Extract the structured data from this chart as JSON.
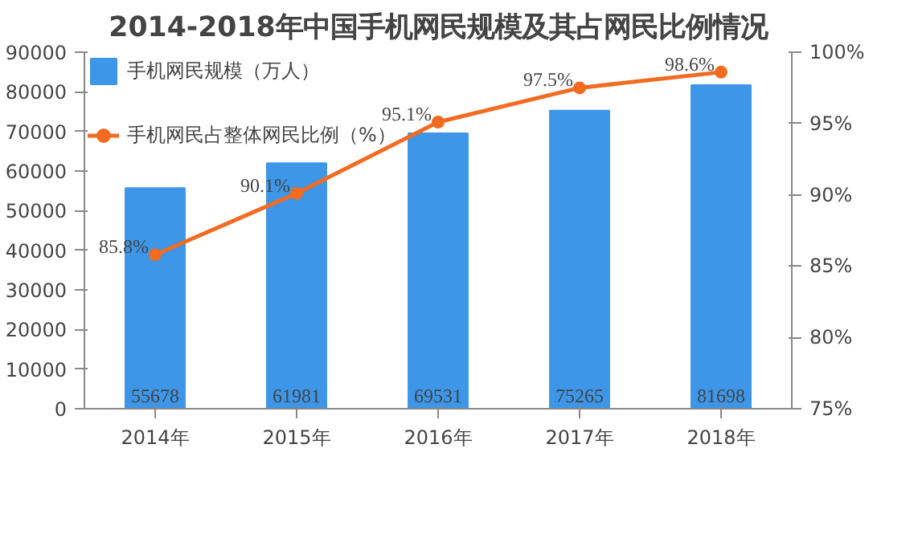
{
  "chart_data": {
    "type": "bar",
    "title": "2014-2018年中国手机网民规模及其占网民比例情况",
    "categories": [
      "2014年",
      "2015年",
      "2016年",
      "2017年",
      "2018年"
    ],
    "series": [
      {
        "name": "手机网民规模（万人）",
        "type": "bar",
        "color": "#3d96e8",
        "values": [
          55678,
          61981,
          69531,
          75265,
          81698
        ]
      },
      {
        "name": "手机网民占整体网民比例（%）",
        "type": "line",
        "axis": "y2",
        "color": "#f26b21",
        "values": [
          85.8,
          90.1,
          95.1,
          97.5,
          98.6
        ],
        "value_labels": [
          "85.8%",
          "90.1%",
          "95.1%",
          "97.5%",
          "98.6%"
        ]
      }
    ],
    "data_labels": true,
    "marker": "circle",
    "legend": "top left",
    "grid": false,
    "ylim": [
      0,
      90000
    ],
    "yticks": [
      0,
      10000,
      20000,
      30000,
      40000,
      50000,
      60000,
      70000,
      80000,
      90000
    ],
    "y2lim": [
      75,
      100
    ],
    "y2ticks": [
      {
        "value": 75,
        "label": "75%"
      },
      {
        "value": 80,
        "label": "80%"
      },
      {
        "value": 85,
        "label": "85%"
      },
      {
        "value": 90,
        "label": "90%"
      },
      {
        "value": 95,
        "label": "95%"
      },
      {
        "value": 100,
        "label": "100%"
      }
    ]
  }
}
